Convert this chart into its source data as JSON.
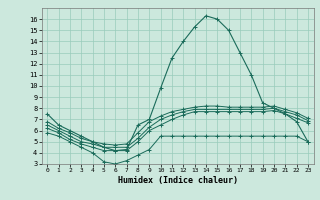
{
  "x": [
    0,
    1,
    2,
    3,
    4,
    5,
    6,
    7,
    8,
    9,
    10,
    11,
    12,
    13,
    14,
    15,
    16,
    17,
    18,
    19,
    20,
    21,
    22,
    23
  ],
  "line_max": [
    7.5,
    6.5,
    6.0,
    5.5,
    5.0,
    4.5,
    4.2,
    4.3,
    6.5,
    7.0,
    9.8,
    12.5,
    14.0,
    15.3,
    16.3,
    16.0,
    15.0,
    13.0,
    11.0,
    8.5,
    8.0,
    7.5,
    6.8,
    5.0
  ],
  "line_q3": [
    6.8,
    6.2,
    5.8,
    5.3,
    5.0,
    4.8,
    4.7,
    4.8,
    5.8,
    6.8,
    7.3,
    7.7,
    7.9,
    8.1,
    8.2,
    8.2,
    8.1,
    8.1,
    8.1,
    8.1,
    8.2,
    7.9,
    7.6,
    7.1
  ],
  "line_mean": [
    6.5,
    6.0,
    5.5,
    5.0,
    4.8,
    4.5,
    4.5,
    4.5,
    5.3,
    6.3,
    7.0,
    7.4,
    7.7,
    7.9,
    7.9,
    7.9,
    7.9,
    7.9,
    7.9,
    7.9,
    8.0,
    7.7,
    7.4,
    6.9
  ],
  "line_q1": [
    6.2,
    5.8,
    5.2,
    4.8,
    4.5,
    4.2,
    4.2,
    4.2,
    5.0,
    6.0,
    6.5,
    7.0,
    7.4,
    7.7,
    7.7,
    7.7,
    7.7,
    7.7,
    7.7,
    7.7,
    7.8,
    7.5,
    7.1,
    6.7
  ],
  "line_min": [
    5.8,
    5.5,
    5.0,
    4.5,
    4.0,
    3.2,
    3.0,
    3.3,
    3.8,
    4.3,
    5.5,
    5.5,
    5.5,
    5.5,
    5.5,
    5.5,
    5.5,
    5.5,
    5.5,
    5.5,
    5.5,
    5.5,
    5.5,
    5.0
  ],
  "color": "#1a6b5a",
  "bg_color": "#cce8dd",
  "grid_color": "#99ccbb",
  "xlabel": "Humidex (Indice chaleur)",
  "ylim": [
    3,
    17
  ],
  "xlim": [
    -0.5,
    23.5
  ],
  "yticks": [
    3,
    4,
    5,
    6,
    7,
    8,
    9,
    10,
    11,
    12,
    13,
    14,
    15,
    16
  ],
  "xticks": [
    0,
    1,
    2,
    3,
    4,
    5,
    6,
    7,
    8,
    9,
    10,
    11,
    12,
    13,
    14,
    15,
    16,
    17,
    18,
    19,
    20,
    21,
    22,
    23
  ]
}
